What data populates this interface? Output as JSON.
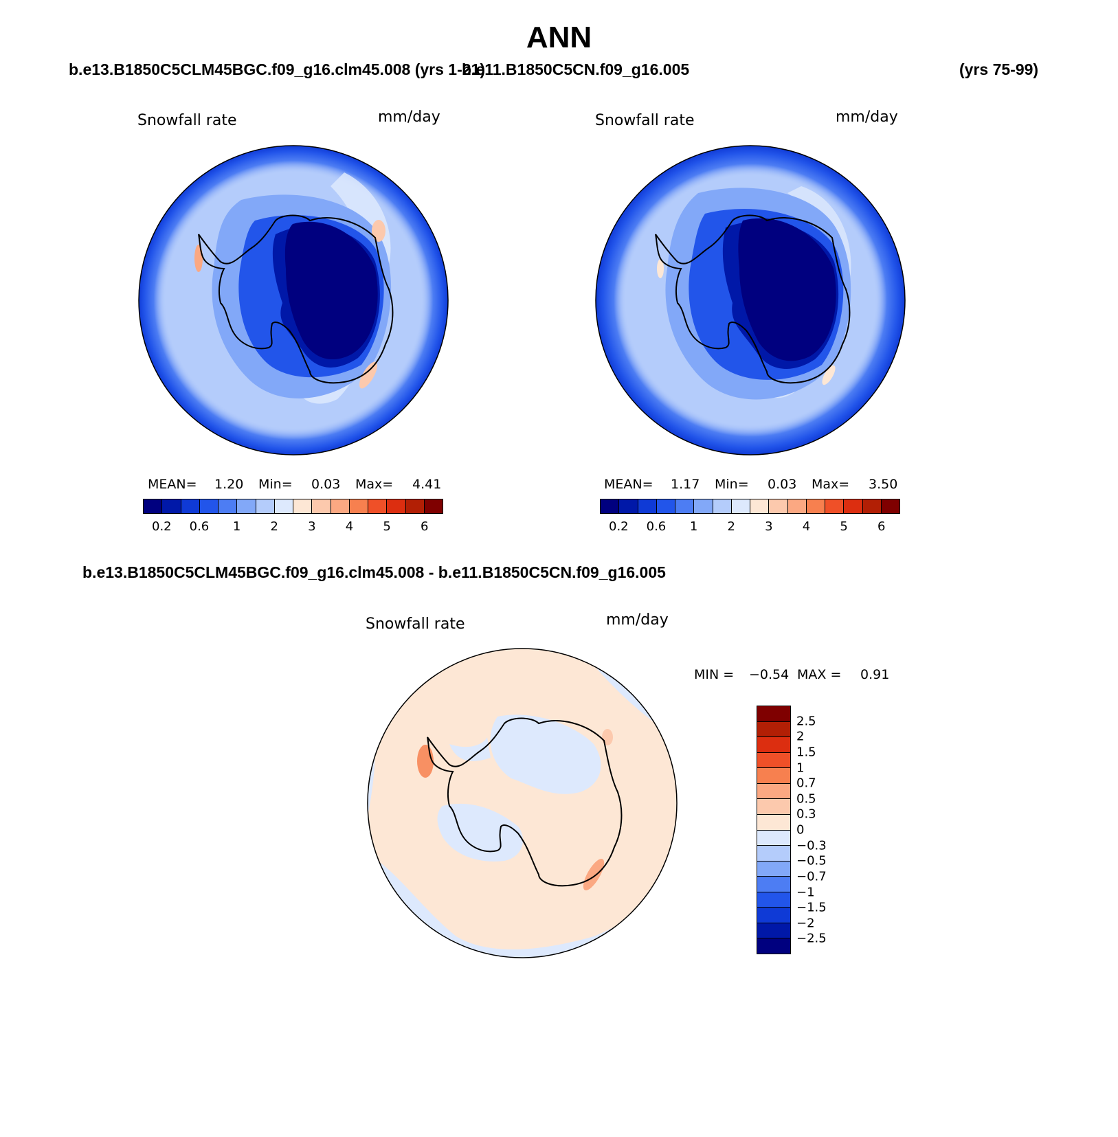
{
  "chart_data": [
    {
      "type": "heatmap",
      "projection": "south-polar-stereographic",
      "panel": "test-case",
      "variable_label": "Snowfall rate",
      "units_label": "mm/day",
      "stats": {
        "mean_label": "MEAN=",
        "mean": "1.20",
        "min_label": "Min=",
        "min": "0.03",
        "max_label": "Max=",
        "max": "4.41"
      },
      "colorbar_ticks": [
        "0.2",
        "0.6",
        "1",
        "2",
        "3",
        "4",
        "5",
        "6"
      ]
    },
    {
      "type": "heatmap",
      "projection": "south-polar-stereographic",
      "panel": "control-case",
      "variable_label": "Snowfall rate",
      "units_label": "mm/day",
      "stats": {
        "mean_label": "MEAN=",
        "mean": "1.17",
        "min_label": "Min=",
        "min": "0.03",
        "max_label": "Max=",
        "max": "3.50"
      },
      "colorbar_ticks": [
        "0.2",
        "0.6",
        "1",
        "2",
        "3",
        "4",
        "5",
        "6"
      ]
    },
    {
      "type": "heatmap",
      "projection": "south-polar-stereographic",
      "panel": "difference",
      "variable_label": "Snowfall rate",
      "units_label": "mm/day",
      "stats": {
        "min_label": "MIN =",
        "min": "−0.54",
        "max_label": "MAX =",
        "max": "0.91"
      },
      "colorbar_ticks": [
        "2.5",
        "2",
        "1.5",
        "1",
        "0.7",
        "0.5",
        "0.3",
        "0",
        "−0.3",
        "−0.5",
        "−0.7",
        "−1",
        "−1.5",
        "−2",
        "−2.5"
      ]
    }
  ],
  "titles": {
    "main": "ANN",
    "case1": "b.e13.B1850C5CLM45BGC.f09_g16.clm45.008 (yrs 1-21)",
    "case2": "b.e11.B1850C5CN.f09_g16.005",
    "case2_years": "(yrs 75-99)",
    "diff": "b.e13.B1850C5CLM45BGC.f09_g16.clm45.008 - b.e11.B1850C5CN.f09_g16.005"
  },
  "colors": {
    "abs_scale": [
      "#00007f",
      "#0018a8",
      "#0f3ad6",
      "#2255ea",
      "#4d7df3",
      "#82a8f8",
      "#b4ccfb",
      "#dde9fd",
      "#fde7d5",
      "#fcc9ad",
      "#fba882",
      "#f7804f",
      "#ef5028",
      "#dc2e10",
      "#b21f05",
      "#7f0000"
    ],
    "diff_scale": [
      "#7f0000",
      "#b21f05",
      "#dc2e10",
      "#ef5028",
      "#f7804f",
      "#fba882",
      "#fcc9ad",
      "#fde7d5",
      "#dde9fd",
      "#b4ccfb",
      "#82a8f8",
      "#4d7df3",
      "#2255ea",
      "#0f3ad6",
      "#0018a8",
      "#00007f"
    ]
  }
}
